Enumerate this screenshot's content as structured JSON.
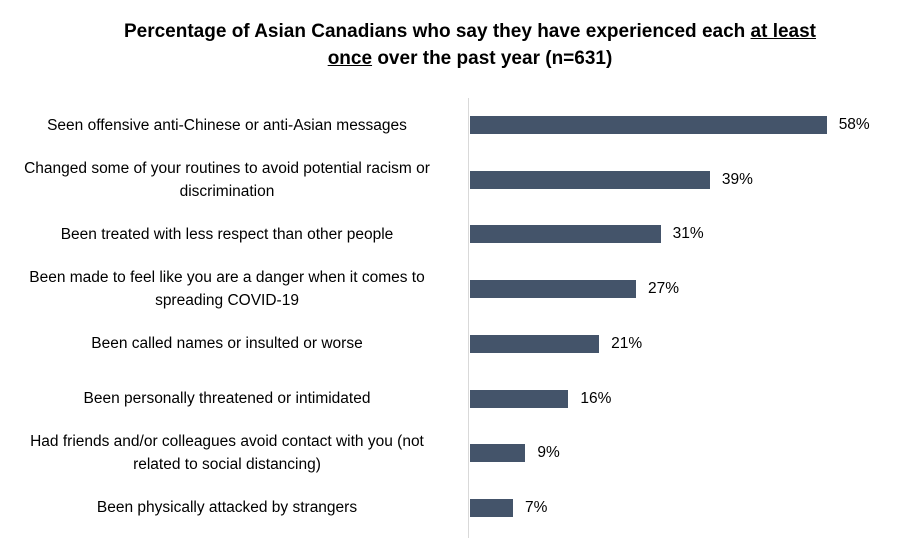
{
  "chart_data": {
    "type": "bar",
    "orientation": "horizontal",
    "title_part1": "Percentage of Asian Canadians who say they have experienced each ",
    "title_underlined_1": "at least",
    "title_underlined_2": "once",
    "title_part2": " over the past year (n=631)",
    "categories": [
      "Seen offensive anti-Chinese or anti-Asian messages",
      "Changed some of your routines to avoid potential racism or discrimination",
      "Been treated with less respect than other people",
      "Been made to feel like you are a danger when it comes to spreading COVID-19",
      "Been called names or insulted or worse",
      "Been personally threatened or intimidated",
      "Had friends and/or colleagues avoid contact with you (not related to social distancing)",
      "Been physically attacked by strangers"
    ],
    "values": [
      58,
      39,
      31,
      27,
      21,
      16,
      9,
      7
    ],
    "value_labels": [
      "58%",
      "39%",
      "31%",
      "27%",
      "21%",
      "16%",
      "9%",
      "7%"
    ],
    "bar_color": "#44546a",
    "legend": "none",
    "grid": false
  }
}
